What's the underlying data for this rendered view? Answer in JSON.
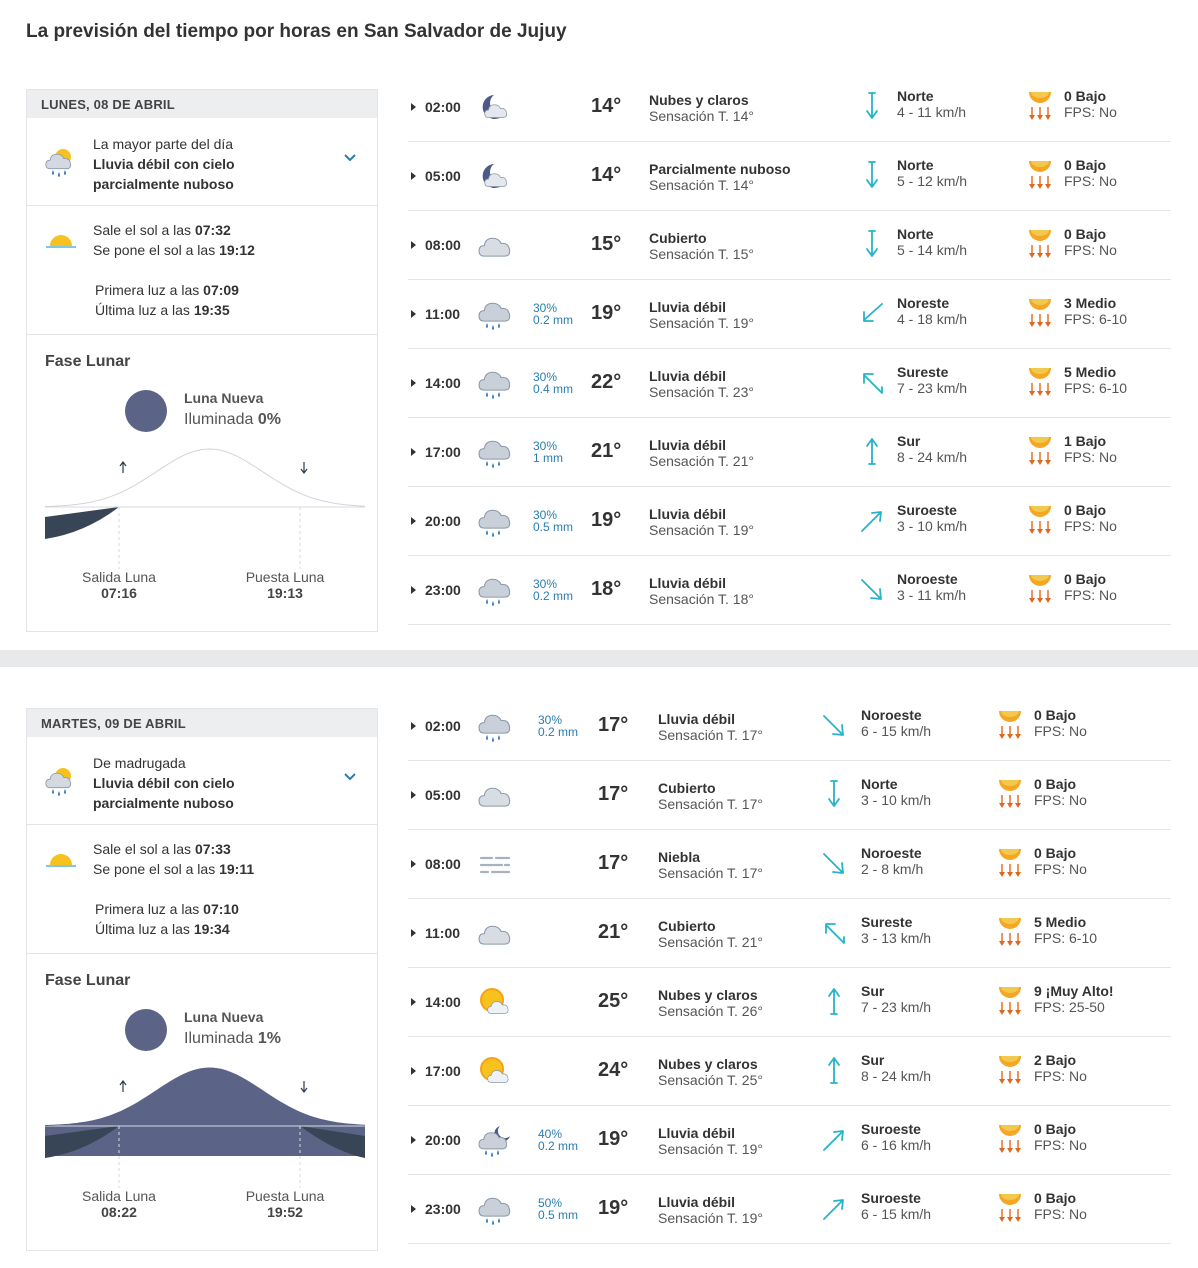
{
  "page_title": "La previsión del tiempo por horas en San Salvador de Jujuy",
  "colors": {
    "accent_blue": "#2a7db1",
    "wind_teal": "#27b3c9",
    "uv_orange": "#f5a623",
    "moon_fill": "#5b6486",
    "night_fill": "#384556"
  },
  "days": [
    {
      "date_label": "LUNES, 08 DE ABRIL",
      "summary": {
        "period": "La mayor parte del día",
        "line1": "Lluvia débil con cielo",
        "line2": "parcialmente nuboso",
        "icon": "cloud-sun-rain-icon"
      },
      "sun": {
        "rise_prefix": "Sale el sol a las ",
        "rise": "07:32",
        "set_prefix": "Se pone el sol a las ",
        "set": "19:12",
        "first_prefix": "Primera luz a las ",
        "first": "07:09",
        "last_prefix": "Última luz a las ",
        "last": "19:35"
      },
      "moon": {
        "title": "Fase Lunar",
        "phase": "Luna Nueva",
        "illum_prefix": "Iluminada ",
        "illum": "0%",
        "illum_fraction": 0.0,
        "rise_label": "Salida Luna",
        "rise": "07:16",
        "set_label": "Puesta Luna",
        "set": "19:13"
      },
      "hours": [
        {
          "time": "02:00",
          "icon": "moon-cloud-icon",
          "rain_pct": "",
          "rain_mm": "",
          "temp": "14°",
          "cond": "Nubes y claros",
          "feels": "Sensación T. 14°",
          "wind_icon": "arrow-down-icon",
          "wind_dir": "Norte",
          "wind_speed": "4 - 11 km/h",
          "uv": "0 Bajo",
          "fps": "FPS: No"
        },
        {
          "time": "05:00",
          "icon": "moon-cloud-icon",
          "rain_pct": "",
          "rain_mm": "",
          "temp": "14°",
          "cond": "Parcialmente nuboso",
          "feels": "Sensación T. 14°",
          "wind_icon": "arrow-down-icon",
          "wind_dir": "Norte",
          "wind_speed": "5 - 12 km/h",
          "uv": "0 Bajo",
          "fps": "FPS: No"
        },
        {
          "time": "08:00",
          "icon": "cloud-icon",
          "rain_pct": "",
          "rain_mm": "",
          "temp": "15°",
          "cond": "Cubierto",
          "feels": "Sensación T. 15°",
          "wind_icon": "arrow-down-icon",
          "wind_dir": "Norte",
          "wind_speed": "5 - 14 km/h",
          "uv": "0 Bajo",
          "fps": "FPS: No"
        },
        {
          "time": "11:00",
          "icon": "cloud-rain-icon",
          "rain_pct": "30%",
          "rain_mm": "0.2 mm",
          "temp": "19°",
          "cond": "Lluvia débil",
          "feels": "Sensación T. 19°",
          "wind_icon": "arrow-down-left-icon",
          "wind_dir": "Noreste",
          "wind_speed": "4 - 18 km/h",
          "uv": "3 Medio",
          "fps": "FPS: 6-10"
        },
        {
          "time": "14:00",
          "icon": "cloud-rain-icon",
          "rain_pct": "30%",
          "rain_mm": "0.4 mm",
          "temp": "22°",
          "cond": "Lluvia débil",
          "feels": "Sensación T. 23°",
          "wind_icon": "arrow-up-left-icon",
          "wind_dir": "Sureste",
          "wind_speed": "7 - 23 km/h",
          "uv": "5 Medio",
          "fps": "FPS: 6-10"
        },
        {
          "time": "17:00",
          "icon": "cloud-rain-icon",
          "rain_pct": "30%",
          "rain_mm": "1 mm",
          "temp": "21°",
          "cond": "Lluvia débil",
          "feels": "Sensación T. 21°",
          "wind_icon": "arrow-up-icon",
          "wind_dir": "Sur",
          "wind_speed": "8 - 24 km/h",
          "uv": "1 Bajo",
          "fps": "FPS: No"
        },
        {
          "time": "20:00",
          "icon": "cloud-rain-icon",
          "rain_pct": "30%",
          "rain_mm": "0.5 mm",
          "temp": "19°",
          "cond": "Lluvia débil",
          "feels": "Sensación T. 19°",
          "wind_icon": "arrow-up-right-icon",
          "wind_dir": "Suroeste",
          "wind_speed": "3 - 10 km/h",
          "uv": "0 Bajo",
          "fps": "FPS: No"
        },
        {
          "time": "23:00",
          "icon": "cloud-rain-icon",
          "rain_pct": "30%",
          "rain_mm": "0.2 mm",
          "temp": "18°",
          "cond": "Lluvia débil",
          "feels": "Sensación T. 18°",
          "wind_icon": "arrow-down-right-icon",
          "wind_dir": "Noroeste",
          "wind_speed": "3 - 11 km/h",
          "uv": "0 Bajo",
          "fps": "FPS: No"
        }
      ]
    },
    {
      "date_label": "MARTES, 09 DE ABRIL",
      "summary": {
        "period": "De madrugada",
        "line1": "Lluvia débil con cielo",
        "line2": "parcialmente nuboso",
        "icon": "cloud-sun-rain-icon"
      },
      "sun": {
        "rise_prefix": "Sale el sol a las ",
        "rise": "07:33",
        "set_prefix": "Se pone el sol a las ",
        "set": "19:11",
        "first_prefix": "Primera luz a las ",
        "first": "07:10",
        "last_prefix": "Última luz a las ",
        "last": "19:34"
      },
      "moon": {
        "title": "Fase Lunar",
        "phase": "Luna Nueva",
        "illum_prefix": "Iluminada ",
        "illum": "1%",
        "illum_fraction": 0.01,
        "rise_label": "Salida Luna",
        "rise": "08:22",
        "set_label": "Puesta Luna",
        "set": "19:52"
      },
      "hours": [
        {
          "time": "02:00",
          "icon": "cloud-rain-icon",
          "rain_pct": "30%",
          "rain_mm": "0.2 mm",
          "temp": "17°",
          "cond": "Lluvia débil",
          "feels": "Sensación T. 17°",
          "wind_icon": "arrow-down-right-icon",
          "wind_dir": "Noroeste",
          "wind_speed": "6 - 15 km/h",
          "uv": "0 Bajo",
          "fps": "FPS: No"
        },
        {
          "time": "05:00",
          "icon": "cloud-icon",
          "rain_pct": "",
          "rain_mm": "",
          "temp": "17°",
          "cond": "Cubierto",
          "feels": "Sensación T. 17°",
          "wind_icon": "arrow-down-icon",
          "wind_dir": "Norte",
          "wind_speed": "3 - 10 km/h",
          "uv": "0 Bajo",
          "fps": "FPS: No"
        },
        {
          "time": "08:00",
          "icon": "fog-icon",
          "rain_pct": "",
          "rain_mm": "",
          "temp": "17°",
          "cond": "Niebla",
          "feels": "Sensación T. 17°",
          "wind_icon": "arrow-down-right-icon",
          "wind_dir": "Noroeste",
          "wind_speed": "2 - 8 km/h",
          "uv": "0 Bajo",
          "fps": "FPS: No"
        },
        {
          "time": "11:00",
          "icon": "cloud-icon",
          "rain_pct": "",
          "rain_mm": "",
          "temp": "21°",
          "cond": "Cubierto",
          "feels": "Sensación T. 21°",
          "wind_icon": "arrow-up-left-icon",
          "wind_dir": "Sureste",
          "wind_speed": "3 - 13 km/h",
          "uv": "5 Medio",
          "fps": "FPS: 6-10"
        },
        {
          "time": "14:00",
          "icon": "sun-cloud-icon",
          "rain_pct": "",
          "rain_mm": "",
          "temp": "25°",
          "cond": "Nubes y claros",
          "feels": "Sensación T. 26°",
          "wind_icon": "arrow-up-icon",
          "wind_dir": "Sur",
          "wind_speed": "7 - 23 km/h",
          "uv": "9 ¡Muy Alto!",
          "fps": "FPS: 25-50"
        },
        {
          "time": "17:00",
          "icon": "sun-cloud-icon",
          "rain_pct": "",
          "rain_mm": "",
          "temp": "24°",
          "cond": "Nubes y claros",
          "feels": "Sensación T. 25°",
          "wind_icon": "arrow-up-icon",
          "wind_dir": "Sur",
          "wind_speed": "8 - 24 km/h",
          "uv": "2 Bajo",
          "fps": "FPS: No"
        },
        {
          "time": "20:00",
          "icon": "moon-cloud-rain-icon",
          "rain_pct": "40%",
          "rain_mm": "0.2 mm",
          "temp": "19°",
          "cond": "Lluvia débil",
          "feels": "Sensación T. 19°",
          "wind_icon": "arrow-up-right-icon",
          "wind_dir": "Suroeste",
          "wind_speed": "6 - 16 km/h",
          "uv": "0 Bajo",
          "fps": "FPS: No"
        },
        {
          "time": "23:00",
          "icon": "cloud-rain-icon",
          "rain_pct": "50%",
          "rain_mm": "0.5 mm",
          "temp": "19°",
          "cond": "Lluvia débil",
          "feels": "Sensación T. 19°",
          "wind_icon": "arrow-up-right-icon",
          "wind_dir": "Suroeste",
          "wind_speed": "6 - 15 km/h",
          "uv": "0 Bajo",
          "fps": "FPS: No"
        }
      ]
    }
  ]
}
